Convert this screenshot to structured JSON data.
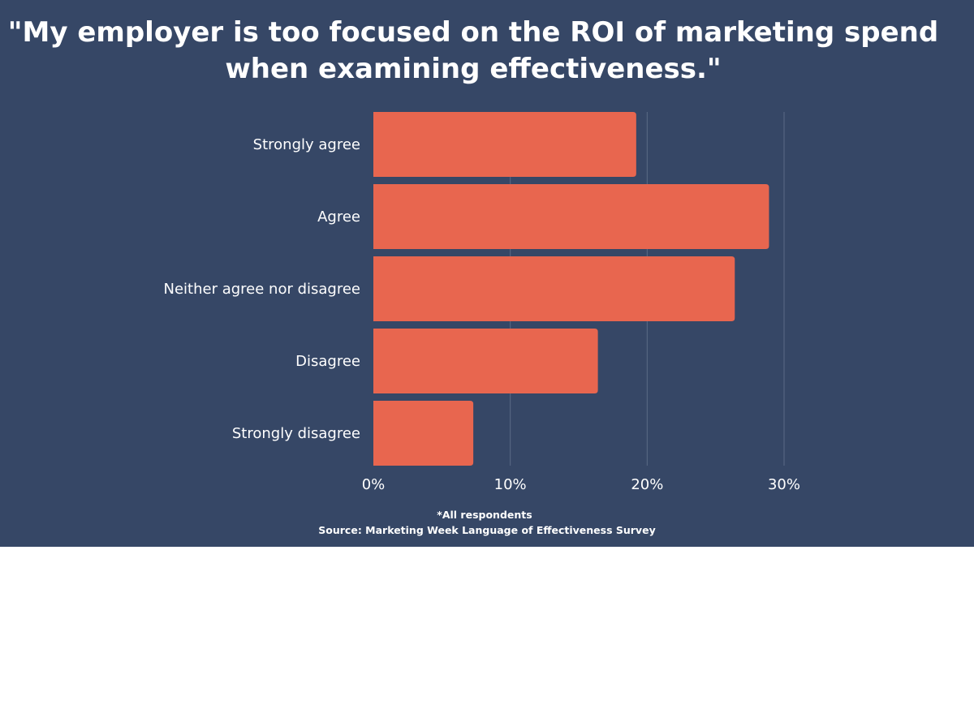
{
  "chart_data": {
    "type": "bar",
    "orientation": "horizontal",
    "title": "\"My employer is too focused on the ROI of marketing spend when examining effectiveness.\"",
    "categories": [
      "Strongly agree",
      "Agree",
      "Neither agree nor disagree",
      "Disagree",
      "Strongly disagree"
    ],
    "values": [
      19.2,
      28.9,
      26.4,
      16.4,
      7.3
    ],
    "xlim": [
      0,
      30
    ],
    "xticks": [
      "0%",
      "10%",
      "20%",
      "30%"
    ],
    "xtick_values": [
      0,
      10,
      20,
      30
    ],
    "grid": true,
    "xlabel": "",
    "ylabel": "",
    "footnote": "*All respondents",
    "source": "Source: Marketing Week Language of Effectiveness Survey",
    "colors": {
      "bar": "#e8664f",
      "background": "#364766",
      "grid": "#5a6a86",
      "text": "#ffffff"
    }
  }
}
